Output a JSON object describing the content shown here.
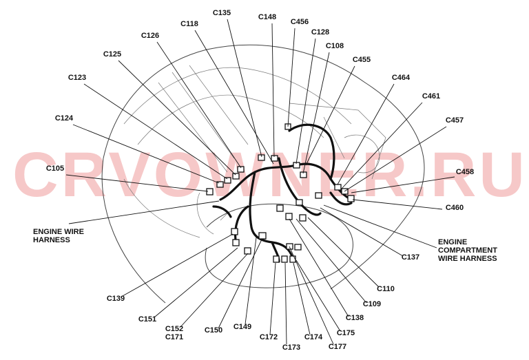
{
  "watermark": "CRVOWNER.RU",
  "labels": [
    [
      "C135"
    ],
    [
      "C148"
    ],
    [
      "C456"
    ],
    [
      "C118"
    ],
    [
      "C128"
    ],
    [
      "C126"
    ],
    [
      "C108"
    ],
    [
      "C125"
    ],
    [
      "C455"
    ],
    [
      "C123"
    ],
    [
      "C464"
    ],
    [
      "C461"
    ],
    [
      "C124"
    ],
    [
      "C457"
    ],
    [
      "C105"
    ],
    [
      "C458"
    ],
    [
      "C460"
    ],
    [
      "ENGINE WIRE",
      "HARNESS"
    ],
    [
      "ENGINE",
      "COMPARTMENT",
      "WIRE HARNESS"
    ],
    [
      "C137"
    ],
    [
      "C110"
    ],
    [
      "C139"
    ],
    [
      "C109"
    ],
    [
      "C151"
    ],
    [
      "C138"
    ],
    [
      "C152",
      "C171"
    ],
    [
      "C150"
    ],
    [
      "C149"
    ],
    [
      "C175"
    ],
    [
      "C172"
    ],
    [
      "C174"
    ],
    [
      "C177"
    ],
    [
      "C173"
    ]
  ]
}
